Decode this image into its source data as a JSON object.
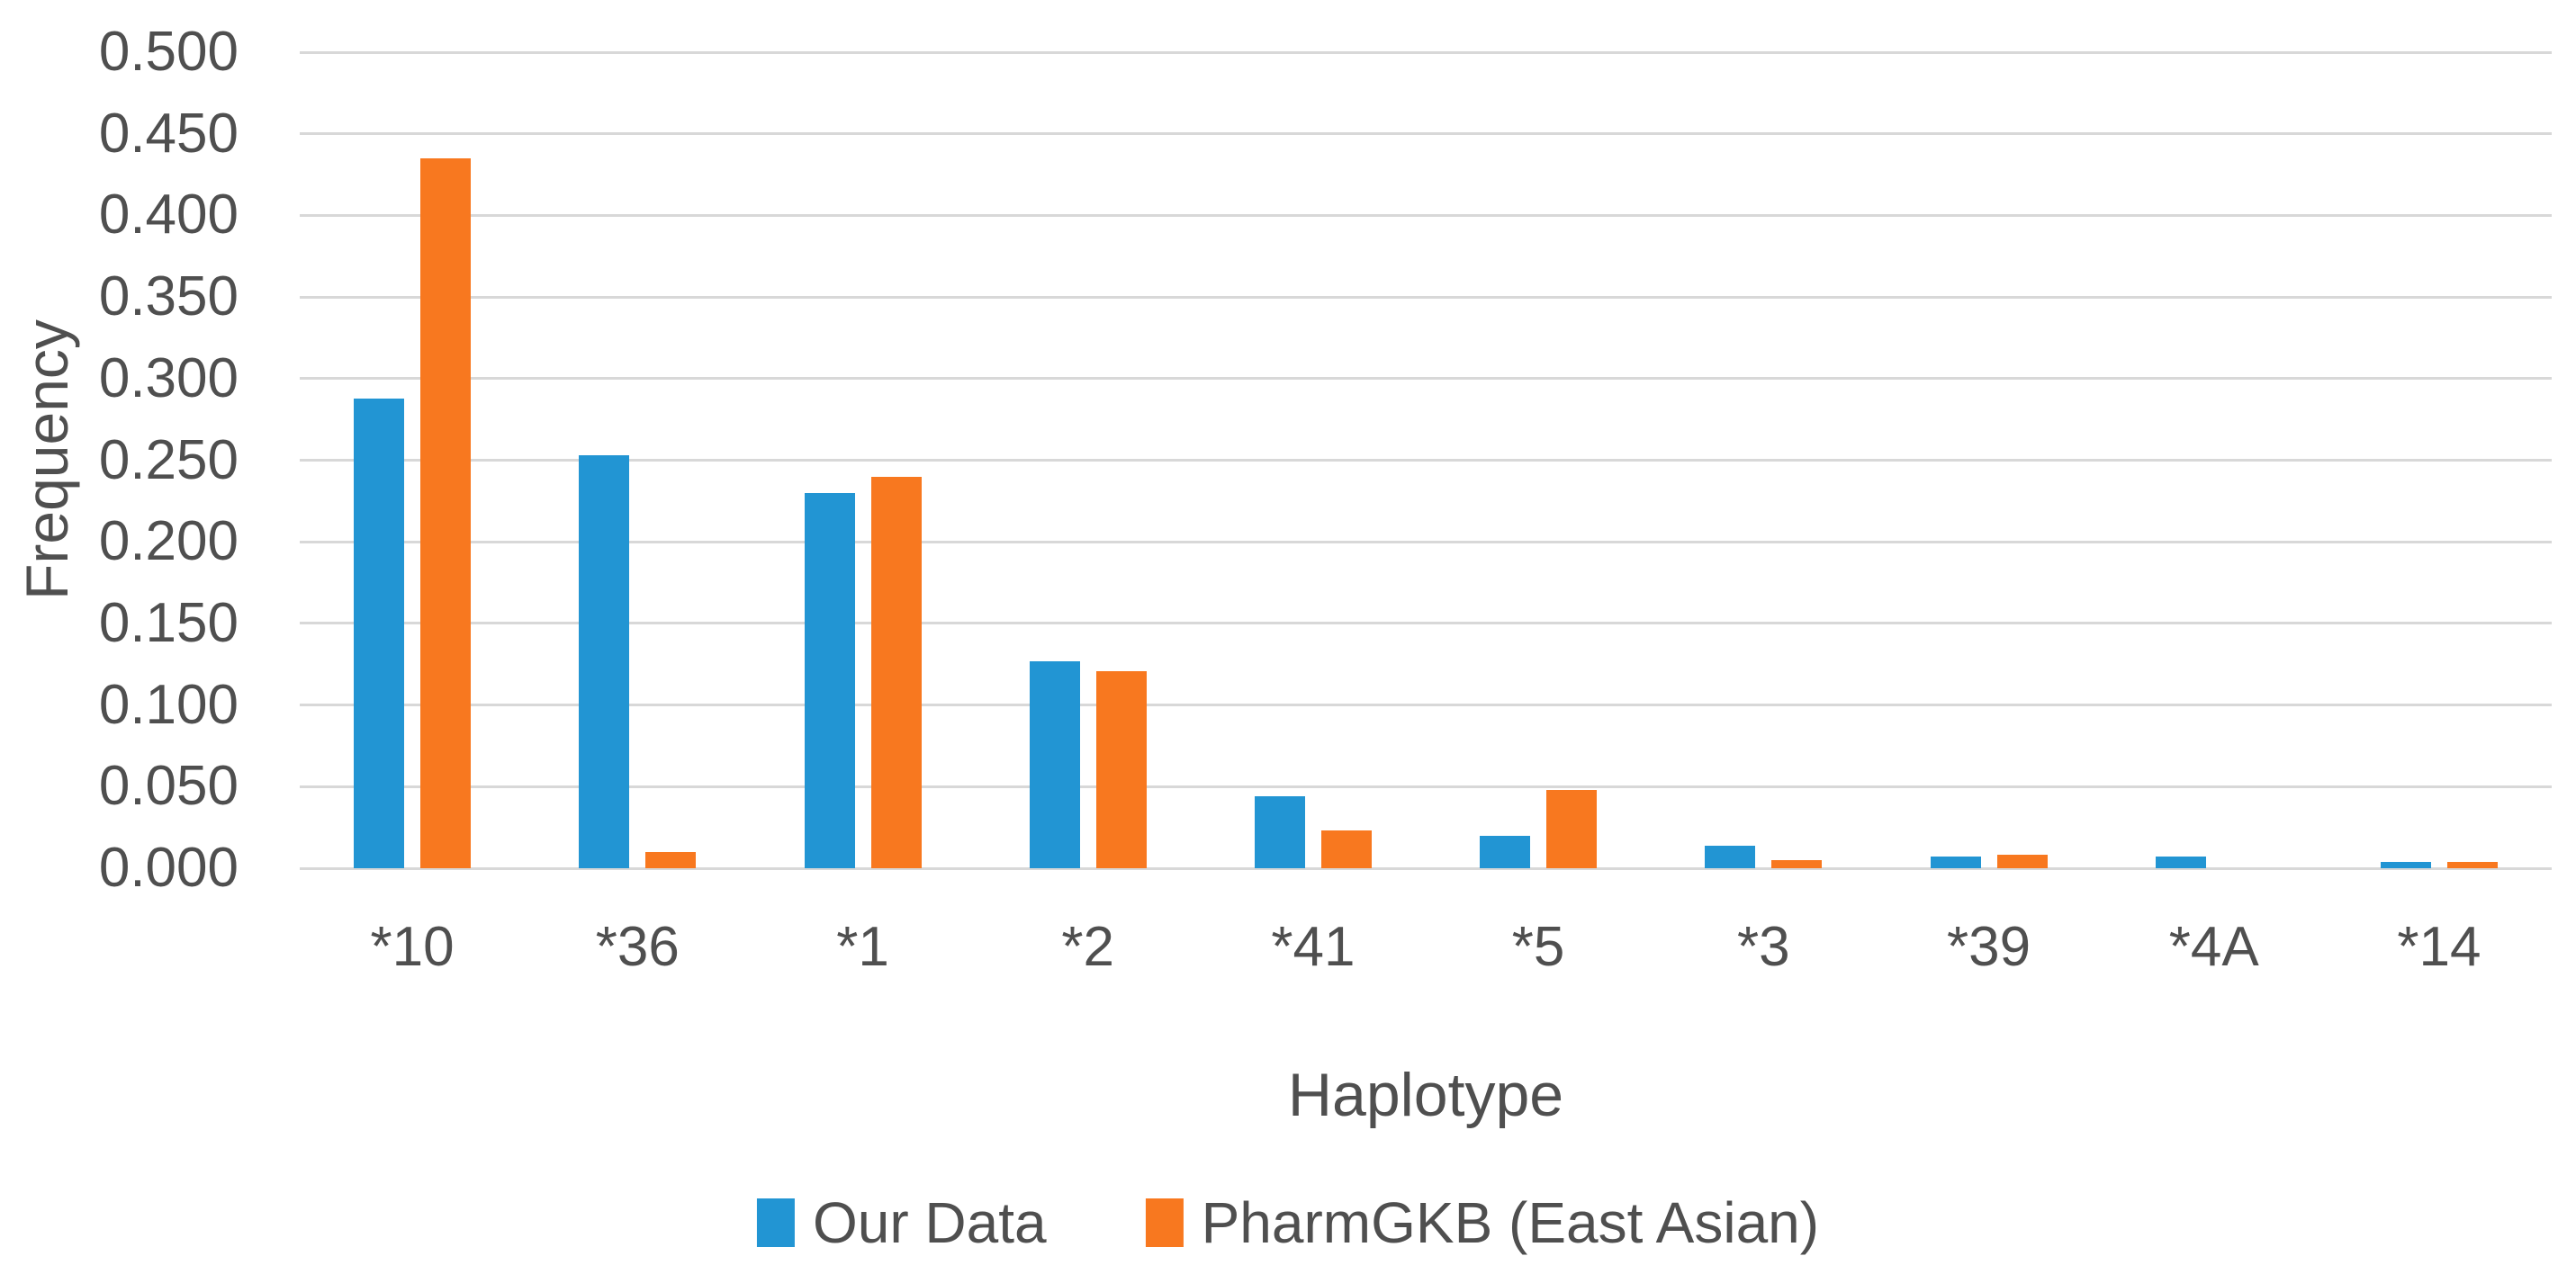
{
  "chart_data": {
    "type": "bar",
    "title": "",
    "xlabel": "Haplotype",
    "ylabel": "Frequency",
    "ylim": [
      0,
      0.5
    ],
    "ytick_step": 0.05,
    "ytick_labels": [
      "0.000",
      "0.050",
      "0.100",
      "0.150",
      "0.200",
      "0.250",
      "0.300",
      "0.350",
      "0.400",
      "0.450",
      "0.500"
    ],
    "grid": true,
    "legend_position": "bottom",
    "categories": [
      "*10",
      "*36",
      "*1",
      "*2",
      "*41",
      "*5",
      "*3",
      "*39",
      "*4A",
      "*14"
    ],
    "series": [
      {
        "name": "Our Data",
        "color": "#2295d3",
        "values": [
          0.288,
          0.253,
          0.23,
          0.127,
          0.044,
          0.02,
          0.014,
          0.007,
          0.007,
          0.004
        ]
      },
      {
        "name": "PharmGKB (East Asian)",
        "color": "#f8781f",
        "values": [
          0.435,
          0.01,
          0.24,
          0.121,
          0.023,
          0.048,
          0.005,
          0.008,
          0.0,
          0.004
        ]
      }
    ],
    "colors": {
      "gridline": "#d8d8d8",
      "axis_text": "#4f4f4f",
      "background": "#ffffff"
    }
  }
}
